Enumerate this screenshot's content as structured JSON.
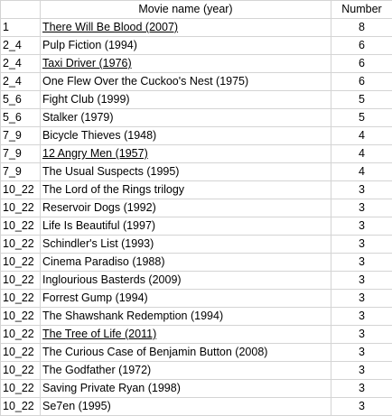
{
  "table": {
    "headers": {
      "rank": "",
      "title": "Movie name (year)",
      "number": "Number"
    },
    "rows": [
      {
        "rank": "1",
        "title": "There Will Be Blood (2007)",
        "number": "8",
        "underlined": true
      },
      {
        "rank": "2_4",
        "title": "Pulp Fiction (1994)",
        "number": "6",
        "underlined": false
      },
      {
        "rank": "2_4",
        "title": "Taxi Driver (1976)",
        "number": "6",
        "underlined": true
      },
      {
        "rank": "2_4",
        "title": "One Flew Over the Cuckoo's Nest (1975)",
        "number": "6",
        "underlined": false
      },
      {
        "rank": "5_6",
        "title": "Fight Club (1999)",
        "number": "5",
        "underlined": false
      },
      {
        "rank": "5_6",
        "title": "Stalker (1979)",
        "number": "5",
        "underlined": false
      },
      {
        "rank": "7_9",
        "title": "Bicycle Thieves (1948)",
        "number": "4",
        "underlined": false
      },
      {
        "rank": "7_9",
        "title": "12 Angry Men (1957)",
        "number": "4",
        "underlined": true
      },
      {
        "rank": "7_9",
        "title": "The Usual Suspects (1995)",
        "number": "4",
        "underlined": false
      },
      {
        "rank": "10_22",
        "title": "The Lord of the Rings trilogy",
        "number": "3",
        "underlined": false
      },
      {
        "rank": "10_22",
        "title": "Reservoir Dogs (1992)",
        "number": "3",
        "underlined": false
      },
      {
        "rank": "10_22",
        "title": "Life Is Beautiful (1997)",
        "number": "3",
        "underlined": false
      },
      {
        "rank": "10_22",
        "title": "Schindler's List (1993)",
        "number": "3",
        "underlined": false
      },
      {
        "rank": "10_22",
        "title": "Cinema Paradiso (1988)",
        "number": "3",
        "underlined": false
      },
      {
        "rank": "10_22",
        "title": "Inglourious Basterds (2009)",
        "number": "3",
        "underlined": false
      },
      {
        "rank": "10_22",
        "title": "Forrest Gump (1994)",
        "number": "3",
        "underlined": false
      },
      {
        "rank": "10_22",
        "title": "The Shawshank Redemption (1994)",
        "number": "3",
        "underlined": false
      },
      {
        "rank": "10_22",
        "title": "The Tree of Life (2011)",
        "number": "3",
        "underlined": true
      },
      {
        "rank": "10_22",
        "title": "The Curious Case of Benjamin Button (2008)",
        "number": "3",
        "underlined": false
      },
      {
        "rank": "10_22",
        "title": "The Godfather (1972)",
        "number": "3",
        "underlined": false
      },
      {
        "rank": "10_22",
        "title": "Saving Private Ryan (1998)",
        "number": "3",
        "underlined": false
      },
      {
        "rank": "10_22",
        "title": "Se7en (1995)",
        "number": "3",
        "underlined": false
      }
    ]
  },
  "colors": {
    "gridline": "#d4d4d4",
    "text": "#000000",
    "background": "#ffffff"
  }
}
